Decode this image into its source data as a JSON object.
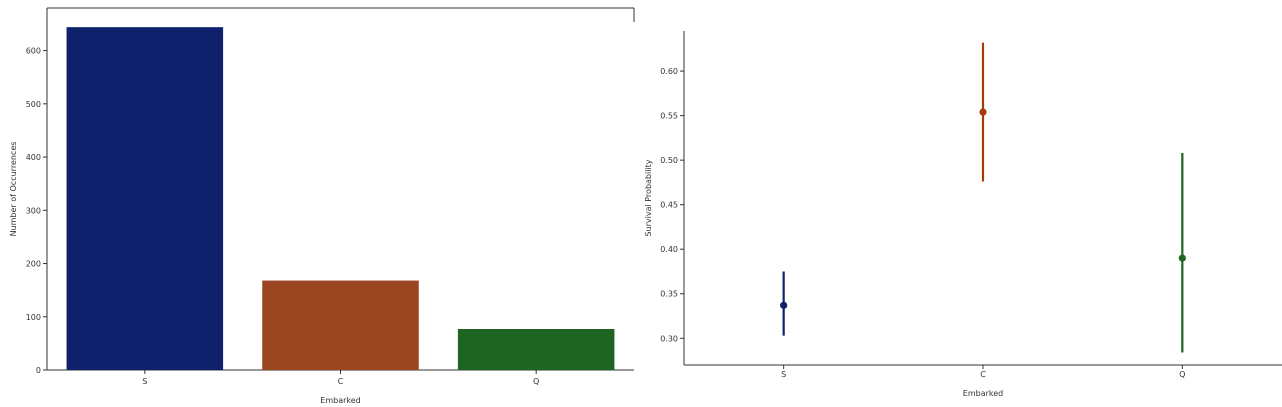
{
  "chart_data": [
    {
      "type": "bar",
      "categories": [
        "S",
        "C",
        "Q"
      ],
      "values": [
        644,
        168,
        77
      ],
      "colors": [
        "#0f206c",
        "#9b4620",
        "#1e6423"
      ],
      "xlabel": "Embarked",
      "ylabel": "Number of Occurrences",
      "ylim": [
        0,
        680
      ],
      "yticks": [
        0,
        100,
        200,
        300,
        400,
        500,
        600
      ],
      "ytick_labels": [
        "0",
        "100",
        "200",
        "300",
        "400",
        "500",
        "600"
      ],
      "grid": false
    },
    {
      "type": "scatter",
      "subtype": "point-with-error-bars",
      "categories": [
        "S",
        "C",
        "Q"
      ],
      "values": [
        0.337,
        0.554,
        0.39
      ],
      "ci_low": [
        0.303,
        0.476,
        0.284
      ],
      "ci_high": [
        0.375,
        0.632,
        0.508
      ],
      "colors": [
        "#0f206c",
        "#a43c0a",
        "#1e6423"
      ],
      "xlabel": "Embarked",
      "ylabel": "Survival Probability",
      "ylim": [
        0.27,
        0.645
      ],
      "yticks": [
        0.3,
        0.35,
        0.4,
        0.45,
        0.5,
        0.55,
        0.6
      ],
      "ytick_labels": [
        "0.30",
        "0.35",
        "0.40",
        "0.45",
        "0.50",
        "0.55",
        "0.60"
      ],
      "grid": false
    }
  ]
}
